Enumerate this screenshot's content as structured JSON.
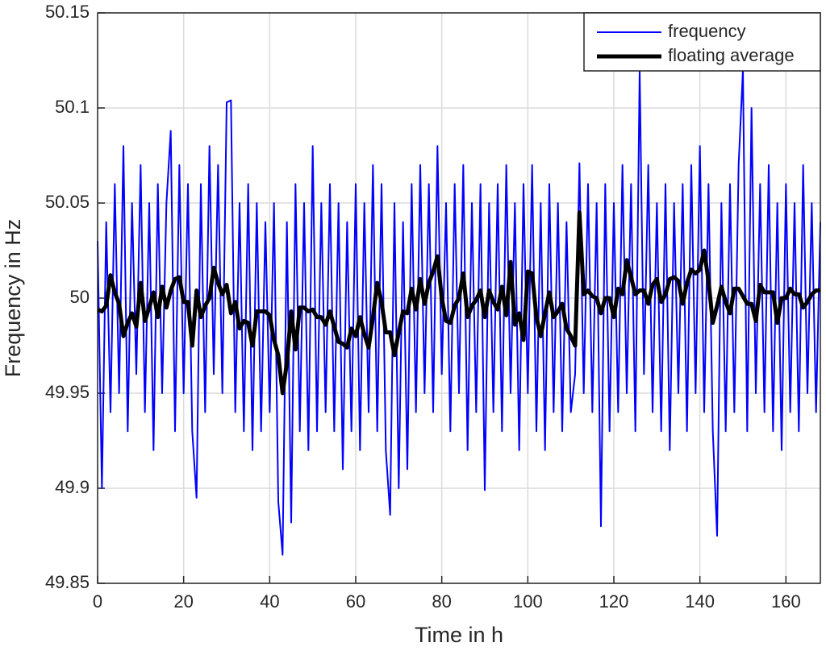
{
  "chart_data": {
    "type": "line",
    "xlabel": "Time in h",
    "ylabel": "Frequency in Hz",
    "x": [
      0,
      1,
      2,
      3,
      4,
      5,
      6,
      7,
      8,
      9,
      10,
      11,
      12,
      13,
      14,
      15,
      16,
      17,
      18,
      19,
      20,
      21,
      22,
      23,
      24,
      25,
      26,
      27,
      28,
      29,
      30,
      31,
      32,
      33,
      34,
      35,
      36,
      37,
      38,
      39,
      40,
      41,
      42,
      43,
      44,
      45,
      46,
      47,
      48,
      49,
      50,
      51,
      52,
      53,
      54,
      55,
      56,
      57,
      58,
      59,
      60,
      61,
      62,
      63,
      64,
      65,
      66,
      67,
      68,
      69,
      70,
      71,
      72,
      73,
      74,
      75,
      76,
      77,
      78,
      79,
      80,
      81,
      82,
      83,
      84,
      85,
      86,
      87,
      88,
      89,
      90,
      91,
      92,
      93,
      94,
      95,
      96,
      97,
      98,
      99,
      100,
      101,
      102,
      103,
      104,
      105,
      106,
      107,
      108,
      109,
      110,
      111,
      112,
      113,
      114,
      115,
      116,
      117,
      118,
      119,
      120,
      121,
      122,
      123,
      124,
      125,
      126,
      127,
      128,
      129,
      130,
      131,
      132,
      133,
      134,
      135,
      136,
      137,
      138,
      139,
      140,
      141,
      142,
      143,
      144,
      145,
      146,
      147,
      148,
      149,
      150,
      151,
      152,
      153,
      154,
      155,
      156,
      157,
      158,
      159,
      160,
      161,
      162,
      163,
      164,
      165,
      166,
      167,
      168
    ],
    "series": [
      {
        "name": "frequency",
        "color": "#0000ff",
        "width": 2,
        "values": [
          50.03,
          49.9,
          50.04,
          49.94,
          50.06,
          49.95,
          50.08,
          49.93,
          50.05,
          49.96,
          50.07,
          49.94,
          50.05,
          49.92,
          50.06,
          49.95,
          50.05,
          50.088,
          49.93,
          50.07,
          49.95,
          50.06,
          49.93,
          49.895,
          50.06,
          49.94,
          50.08,
          49.96,
          50.07,
          49.95,
          50.103,
          50.104,
          49.94,
          50.05,
          49.93,
          50.06,
          49.92,
          50.05,
          49.93,
          50.04,
          49.94,
          50.05,
          49.893,
          49.865,
          50.04,
          49.882,
          50.06,
          49.93,
          50.05,
          49.92,
          50.08,
          49.93,
          50.05,
          49.94,
          50.06,
          49.93,
          50.05,
          49.91,
          50.04,
          49.93,
          50.06,
          49.92,
          50.05,
          49.94,
          50.07,
          49.93,
          50.06,
          49.92,
          49.886,
          50.05,
          49.9,
          50.04,
          49.91,
          50.06,
          49.94,
          50.07,
          49.95,
          50.06,
          49.94,
          50.08,
          49.96,
          50.05,
          49.93,
          50.06,
          49.95,
          50.07,
          49.92,
          50.05,
          49.94,
          50.06,
          49.899,
          50.05,
          49.94,
          50.06,
          49.93,
          50.07,
          49.95,
          50.05,
          49.92,
          50.06,
          49.95,
          50.07,
          49.93,
          50.05,
          49.92,
          50.06,
          49.94,
          50.05,
          49.93,
          50.04,
          49.94,
          49.96,
          50.071,
          49.95,
          50.06,
          49.94,
          50.05,
          49.88,
          50.06,
          49.93,
          50.05,
          49.94,
          50.07,
          49.95,
          50.06,
          49.93,
          50.12,
          49.96,
          50.07,
          49.94,
          50.05,
          49.93,
          50.06,
          49.92,
          50.05,
          49.95,
          50.06,
          49.93,
          50.07,
          49.95,
          50.08,
          49.94,
          50.06,
          49.93,
          49.875,
          50.05,
          49.93,
          50.06,
          49.94,
          50.07,
          50.12,
          49.93,
          50.1,
          49.95,
          50.06,
          49.94,
          50.07,
          49.93,
          50.05,
          49.92,
          50.06,
          49.94,
          50.05,
          49.93,
          50.07,
          49.95,
          50.05,
          49.94,
          50.04
        ]
      },
      {
        "name": "floating average",
        "color": "#000000",
        "width": 5,
        "values": [
          49.994,
          49.993,
          49.996,
          50.012,
          50.003,
          49.997,
          49.98,
          49.987,
          49.992,
          49.985,
          50.008,
          49.988,
          49.995,
          50.003,
          49.99,
          50.006,
          49.995,
          50.004,
          50.01,
          50.011,
          49.998,
          49.998,
          49.975,
          50.004,
          49.99,
          49.996,
          50.0,
          50.016,
          50.008,
          50.002,
          50.007,
          49.992,
          49.998,
          49.984,
          49.988,
          49.987,
          49.975,
          49.993,
          49.993,
          49.993,
          49.991,
          49.978,
          49.97,
          49.95,
          49.966,
          49.993,
          49.973,
          49.995,
          49.995,
          49.993,
          49.994,
          49.99,
          49.99,
          49.986,
          49.993,
          49.985,
          49.977,
          49.976,
          49.974,
          49.984,
          49.98,
          49.99,
          49.981,
          49.974,
          49.99,
          50.008,
          49.998,
          49.982,
          49.982,
          49.97,
          49.982,
          49.993,
          49.992,
          50.005,
          49.994,
          50.01,
          49.997,
          50.008,
          50.014,
          50.022,
          50.0,
          49.988,
          49.987,
          49.996,
          50.0,
          50.013,
          49.99,
          49.996,
          49.999,
          50.004,
          49.99,
          50.004,
          49.998,
          49.994,
          50.006,
          49.991,
          50.019,
          49.986,
          49.992,
          49.978,
          50.014,
          50.013,
          49.99,
          49.98,
          49.992,
          50.003,
          49.99,
          49.993,
          49.997,
          49.984,
          49.98,
          49.975,
          50.045,
          50.002,
          50.004,
          50.001,
          50.0,
          49.992,
          50.0,
          50.0,
          49.99,
          50.005,
          50.002,
          50.02,
          50.011,
          50.002,
          50.004,
          50.004,
          49.997,
          50.007,
          50.01,
          49.998,
          50.002,
          50.01,
          50.011,
          50.009,
          49.997,
          50.008,
          50.015,
          50.013,
          50.015,
          50.025,
          50.009,
          49.987,
          49.996,
          50.006,
          49.998,
          49.992,
          50.005,
          50.005,
          50.001,
          49.997,
          49.997,
          49.988,
          50.007,
          50.003,
          50.003,
          50.003,
          49.987,
          50.0,
          50.0,
          50.005,
          50.002,
          50.002,
          49.995,
          49.998,
          50.002,
          50.004,
          50.004
        ]
      }
    ],
    "xlim": [
      0,
      168
    ],
    "xticks": [
      0,
      20,
      40,
      60,
      80,
      100,
      120,
      140,
      160
    ],
    "ylim": [
      49.85,
      50.15
    ],
    "yticks": [
      49.85,
      49.9,
      49.95,
      50,
      50.05,
      50.1,
      50.15
    ],
    "grid": true,
    "legend": "upper right"
  }
}
